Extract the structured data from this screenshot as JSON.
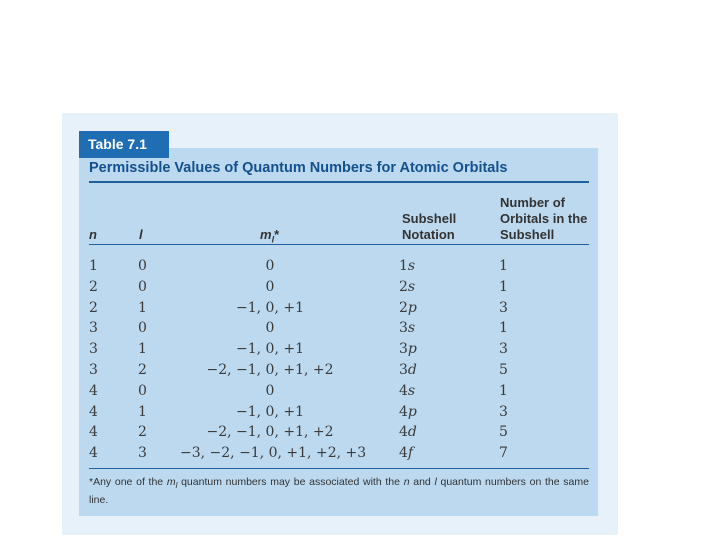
{
  "table_label": "Table 7.1",
  "title": "Permissible Values of Quantum Numbers for Atomic Orbitals",
  "headers": {
    "n": "n",
    "l": "l",
    "ml": "m",
    "ml_sub": "l",
    "ml_star": "*",
    "subshell_line1": "Subshell",
    "subshell_line2": "Notation",
    "orbitals_line1": "Number of",
    "orbitals_line2": "Orbitals in the",
    "orbitals_line3": "Subshell"
  },
  "rows": [
    {
      "n": "1",
      "l": "0",
      "ml": "0",
      "sub_n": "1",
      "sub_l": "s",
      "count": "1"
    },
    {
      "n": "2",
      "l": "0",
      "ml": "0",
      "sub_n": "2",
      "sub_l": "s",
      "count": "1"
    },
    {
      "n": "2",
      "l": "1",
      "ml": "−1, 0, +1",
      "sub_n": "2",
      "sub_l": "p",
      "count": "3"
    },
    {
      "n": "3",
      "l": "0",
      "ml": "0",
      "sub_n": "3",
      "sub_l": "s",
      "count": "1"
    },
    {
      "n": "3",
      "l": "1",
      "ml": "−1, 0, +1",
      "sub_n": "3",
      "sub_l": "p",
      "count": "3"
    },
    {
      "n": "3",
      "l": "2",
      "ml": "−2, −1, 0, +1, +2",
      "sub_n": "3",
      "sub_l": "d",
      "count": "5"
    },
    {
      "n": "4",
      "l": "0",
      "ml": "0",
      "sub_n": "4",
      "sub_l": "s",
      "count": "1"
    },
    {
      "n": "4",
      "l": "1",
      "ml": "−1, 0, +1",
      "sub_n": "4",
      "sub_l": "p",
      "count": "3"
    },
    {
      "n": "4",
      "l": "2",
      "ml": "−2, −1, 0, +1, +2",
      "sub_n": "4",
      "sub_l": "d",
      "count": "5"
    },
    {
      "n": "4",
      "l": "3",
      "ml": "−3, −2, −1, 0, +1, +2, +3",
      "sub_n": "4",
      "sub_l": "f",
      "count": "7"
    }
  ],
  "footnote": {
    "p1": "*Any one of the ",
    "ml": "m",
    "ml_sub": "l",
    "p2": " quantum numbers may be associated with the ",
    "n": "n",
    "p3": " and ",
    "l": "l",
    "p4": " quantum numbers on the same line."
  }
}
